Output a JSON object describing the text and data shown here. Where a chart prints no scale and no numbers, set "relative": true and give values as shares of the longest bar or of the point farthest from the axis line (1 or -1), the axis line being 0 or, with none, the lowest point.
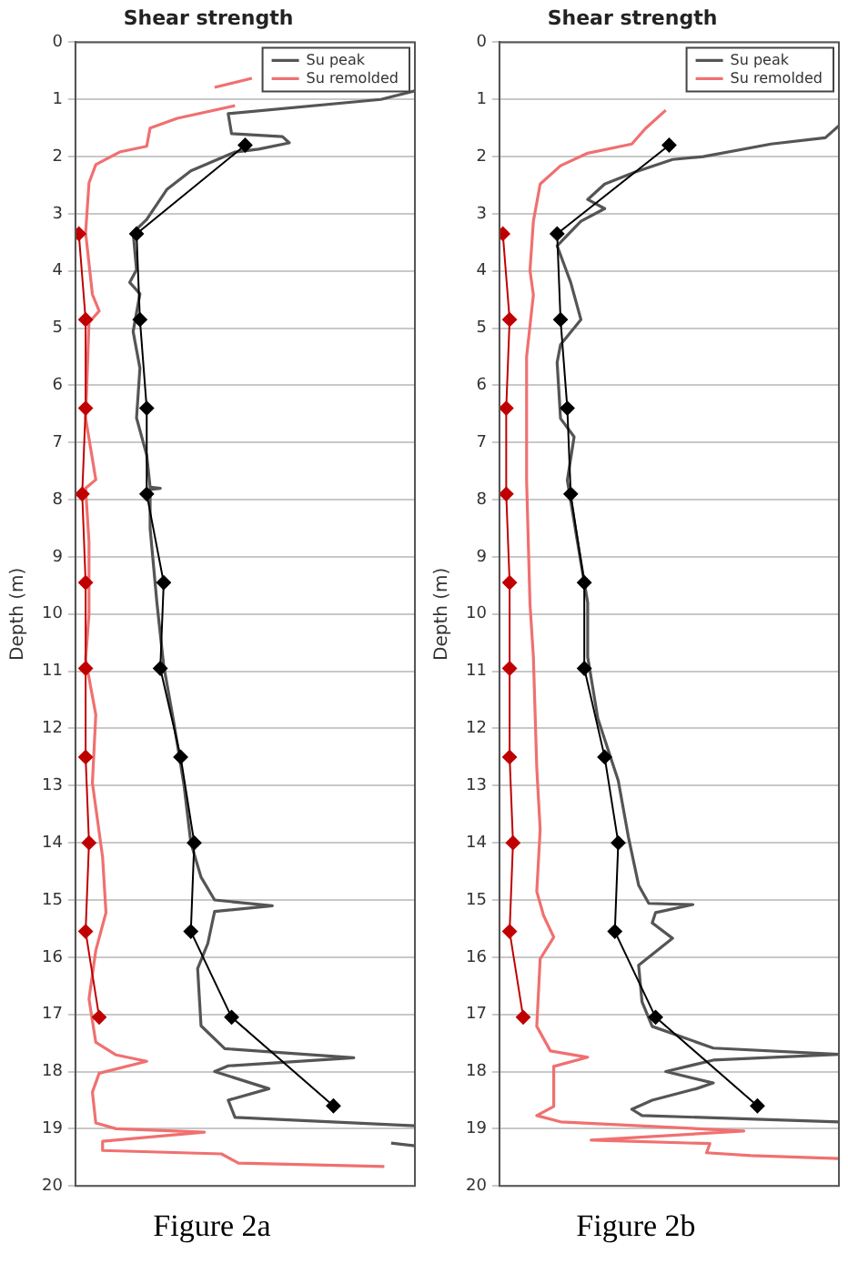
{
  "chart_data": [
    {
      "type": "line",
      "title": "Shear strength",
      "ylabel": "Depth (m)",
      "annotations": [
        "Figure 2a"
      ],
      "orientation": "horizontal",
      "relative": true,
      "ylim": [
        20,
        0
      ],
      "yticks": [
        0,
        1,
        2,
        3,
        4,
        5,
        6,
        7,
        8,
        9,
        10,
        11,
        12,
        13,
        14,
        15,
        16,
        17,
        18,
        19,
        20
      ],
      "grid": "y",
      "legend": "top right",
      "marker": "none",
      "line_style": "solid",
      "series": [
        {
          "name": "Su peak",
          "color": "#555555",
          "x": [
            0.85,
            1.0,
            1.25,
            1.6,
            1.65,
            1.76,
            1.87,
            1.92,
            2.25,
            2.57,
            3.1,
            3.33,
            3.98,
            4.2,
            4.4,
            5.06,
            5.7,
            6.57,
            7.22,
            7.78,
            7.8,
            7.82,
            8.5,
            9.8,
            10.9,
            11.9,
            13.0,
            14.0,
            14.6,
            15.0,
            15.1,
            15.2,
            15.76,
            16.2,
            17.2,
            17.6,
            17.76,
            17.9,
            18.0,
            18.3,
            18.5,
            18.8,
            18.95,
            19.1,
            19.25,
            19.3
          ],
          "values": [
            1.0,
            0.9,
            0.45,
            0.46,
            0.61,
            0.63,
            0.54,
            0.47,
            0.34,
            0.27,
            0.21,
            0.17,
            0.18,
            0.16,
            0.19,
            0.17,
            0.19,
            0.18,
            0.21,
            0.22,
            0.25,
            0.22,
            0.22,
            0.24,
            0.26,
            0.29,
            0.32,
            0.34,
            0.37,
            0.41,
            0.58,
            0.41,
            0.39,
            0.36,
            0.37,
            0.44,
            0.82,
            0.45,
            0.41,
            0.57,
            0.45,
            0.47,
            1.0,
            null,
            0.93,
            1.0
          ]
        },
        {
          "name": "Su remolded",
          "color": "#f07070",
          "x": [
            0.63,
            0.79,
            0.95,
            1.11,
            1.33,
            1.5,
            1.82,
            1.92,
            2.14,
            2.46,
            3.33,
            4.41,
            4.7,
            4.9,
            6.57,
            7.65,
            7.8,
            8.74,
            10.0,
            10.79,
            11.76,
            12.95,
            14.25,
            15.22,
            15.88,
            16.73,
            17.49,
            17.71,
            17.82,
            18.03,
            18.36,
            18.9,
            19.0,
            19.06,
            19.22,
            19.38,
            19.44,
            19.6,
            19.66
          ],
          "values": [
            0.52,
            0.41,
            null,
            0.47,
            0.3,
            0.22,
            0.21,
            0.13,
            0.06,
            0.04,
            0.03,
            0.05,
            0.07,
            0.04,
            0.03,
            0.06,
            0.03,
            0.04,
            0.04,
            0.03,
            0.06,
            0.05,
            0.08,
            0.09,
            0.06,
            0.04,
            0.06,
            0.12,
            0.21,
            0.07,
            0.05,
            0.06,
            0.12,
            0.38,
            0.08,
            0.08,
            0.43,
            0.48,
            0.91
          ]
        },
        {
          "color": "#000000",
          "marker": "diamond",
          "x": [
            1.8,
            3.35,
            4.85,
            6.4,
            7.9,
            9.45,
            10.95,
            12.5,
            14.0,
            15.55,
            17.05,
            18.6
          ],
          "values": [
            0.5,
            0.18,
            0.19,
            0.21,
            0.21,
            0.26,
            0.25,
            0.31,
            0.35,
            0.34,
            0.46,
            0.76
          ]
        },
        {
          "color": "#c00000",
          "marker": "diamond",
          "x": [
            3.35,
            4.85,
            6.4,
            7.9,
            9.45,
            10.95,
            12.5,
            14.0,
            15.55,
            17.05
          ],
          "values": [
            0.01,
            0.03,
            0.03,
            0.02,
            0.03,
            0.03,
            0.03,
            0.04,
            0.03,
            0.07
          ]
        }
      ]
    },
    {
      "type": "line",
      "title": "Shear strength",
      "ylabel": "Depth (m)",
      "annotations": [
        "Figure 2b"
      ],
      "orientation": "horizontal",
      "relative": true,
      "ylim": [
        20,
        0
      ],
      "yticks": [
        0,
        1,
        2,
        3,
        4,
        5,
        6,
        7,
        8,
        9,
        10,
        11,
        12,
        13,
        14,
        15,
        16,
        17,
        18,
        19,
        20
      ],
      "grid": "y",
      "legend": "top right",
      "marker": "none",
      "line_style": "solid",
      "series": [
        {
          "name": "Su peak",
          "color": "#555555",
          "x": [
            1.46,
            1.67,
            1.78,
            2.0,
            2.05,
            2.27,
            2.48,
            2.75,
            2.91,
            3.13,
            3.56,
            3.88,
            4.2,
            4.85,
            5.29,
            5.6,
            6.58,
            6.9,
            7.66,
            8.74,
            9.8,
            10.75,
            11.83,
            12.91,
            13.9,
            14.74,
            15.06,
            15.08,
            15.22,
            15.4,
            15.67,
            16.14,
            16.78,
            17.21,
            17.59,
            17.7,
            17.8,
            18.0,
            18.2,
            18.3,
            18.5,
            18.66,
            18.77,
            18.88
          ],
          "values": [
            1.0,
            0.96,
            0.8,
            0.6,
            0.51,
            0.4,
            0.31,
            0.26,
            0.31,
            0.24,
            0.17,
            0.19,
            0.21,
            0.24,
            0.18,
            0.17,
            0.18,
            0.22,
            0.2,
            0.23,
            0.26,
            0.26,
            0.29,
            0.35,
            0.38,
            0.41,
            0.44,
            0.57,
            0.46,
            0.45,
            0.51,
            0.41,
            0.42,
            0.45,
            0.63,
            1.0,
            0.63,
            0.49,
            0.63,
            0.58,
            0.45,
            0.39,
            0.42,
            1.0
          ]
        },
        {
          "name": "Su remolded",
          "color": "#f07070",
          "x": [
            1.19,
            1.51,
            1.78,
            1.94,
            2.16,
            2.48,
            3.13,
            3.99,
            4.42,
            5.5,
            7.66,
            9.82,
            10.75,
            12.69,
            13.77,
            14.85,
            15.27,
            15.65,
            16.03,
            17.21,
            17.64,
            17.75,
            17.91,
            18.61,
            18.77,
            18.88,
            19.04,
            19.2,
            19.26,
            19.42,
            19.47,
            19.52
          ],
          "values": [
            0.49,
            0.43,
            0.39,
            0.26,
            0.18,
            0.12,
            0.1,
            0.09,
            0.1,
            0.08,
            0.08,
            0.09,
            0.1,
            0.11,
            0.12,
            0.11,
            0.13,
            0.16,
            0.12,
            0.11,
            0.15,
            0.26,
            0.16,
            0.16,
            0.11,
            0.18,
            0.72,
            0.27,
            0.62,
            0.61,
            0.74,
            1.0
          ]
        },
        {
          "color": "#000000",
          "marker": "diamond",
          "x": [
            1.8,
            3.35,
            4.85,
            6.4,
            7.9,
            9.45,
            10.95,
            12.5,
            14.0,
            15.55,
            17.05,
            18.6
          ],
          "values": [
            0.5,
            0.17,
            0.18,
            0.2,
            0.21,
            0.25,
            0.25,
            0.31,
            0.35,
            0.34,
            0.46,
            0.76
          ]
        },
        {
          "color": "#c00000",
          "marker": "diamond",
          "x": [
            3.35,
            4.85,
            6.4,
            7.9,
            9.45,
            10.95,
            12.5,
            14.0,
            15.55,
            17.05
          ],
          "values": [
            0.01,
            0.03,
            0.02,
            0.02,
            0.03,
            0.03,
            0.03,
            0.04,
            0.03,
            0.07
          ]
        }
      ]
    }
  ]
}
